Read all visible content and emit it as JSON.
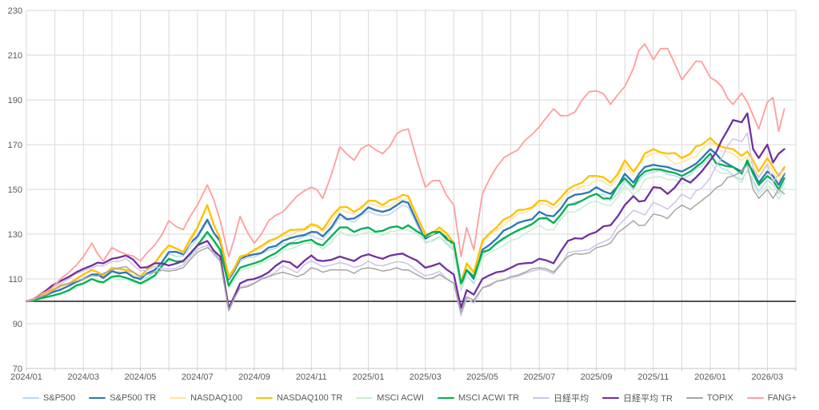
{
  "chart_data": {
    "type": "line",
    "title": "",
    "xlabel": "",
    "ylabel": "",
    "ylim": [
      70,
      230
    ],
    "y_ticks": [
      70,
      90,
      110,
      130,
      150,
      170,
      190,
      210,
      230
    ],
    "baseline_value": 100,
    "grid": true,
    "legend_position": "bottom",
    "x_unit": "months since 2024/01",
    "x_axis_range_months": [
      0,
      27
    ],
    "x_tick_labels": [
      "2024/01",
      "2024/03",
      "2024/05",
      "2024/07",
      "2024/09",
      "2024/11",
      "2025/01",
      "2025/03",
      "2025/05",
      "2025/07",
      "2025/09",
      "2025/11",
      "2026/01",
      "2026/03"
    ],
    "x_tick_positions": [
      0,
      2,
      4,
      6,
      8,
      10,
      12,
      14,
      16,
      18,
      20,
      22,
      24,
      26
    ],
    "colors": {
      "grid": "#D9D9D9",
      "axis_line": "#C6C6C6",
      "axis_text": "#595959",
      "baseline": "#1A1A1A",
      "background": "#FFFFFF"
    },
    "x": [
      0,
      0.25,
      0.9,
      1.5,
      2,
      2.3,
      2.7,
      3,
      3.5,
      4,
      4.5,
      5,
      5.5,
      6,
      6.35,
      6.8,
      7.1,
      7.5,
      8,
      8.5,
      9,
      9.5,
      10,
      10.4,
      11,
      11.5,
      12,
      12.5,
      13,
      13.4,
      14,
      14.5,
      15,
      15.25,
      15.45,
      15.7,
      16,
      16.5,
      17,
      17.5,
      18,
      18.5,
      19,
      19.5,
      20,
      20.5,
      21,
      21.3,
      21.7,
      22,
      22.5,
      23,
      23.3,
      23.7,
      24,
      24.4,
      24.8,
      25.1,
      25.3,
      25.5,
      25.7,
      26,
      26.2,
      26.4,
      26.6
    ],
    "series": [
      {
        "name": "S&P500",
        "color": "#BDD7EE",
        "width": 1.5,
        "values": [
          100,
          100.5,
          103.8,
          106.7,
          109.7,
          111.6,
          110.1,
          113,
          112.5,
          109.4,
          113.3,
          121.2,
          120.2,
          128.1,
          135.5,
          126,
          108.9,
          117.9,
          119.8,
          122.7,
          125.6,
          127.6,
          129.5,
          127.5,
          137.4,
          135.3,
          140.2,
          138.2,
          141.1,
          142,
          126,
          128.9,
          122.8,
          104.8,
          111.7,
          107.7,
          120.6,
          125.5,
          130.4,
          133.4,
          137.3,
          135.2,
          143.2,
          145.1,
          148,
          145,
          153.9,
          149.9,
          156.8,
          157.7,
          156.7,
          154.6,
          156.5,
          160.5,
          164.4,
          159.4,
          156.3,
          154.3,
          158.2,
          154.2,
          149.1,
          154.1,
          152,
          148,
          153
        ]
      },
      {
        "name": "S&P500 TR",
        "color": "#2E75B6",
        "width": 2.3,
        "values": [
          100,
          100.5,
          104,
          107,
          110,
          112,
          110.5,
          113.5,
          113,
          110,
          114,
          122,
          121,
          129,
          136.5,
          127,
          110,
          119,
          121,
          124,
          127,
          129,
          131,
          129,
          139,
          137,
          142,
          140,
          143,
          144,
          128,
          131,
          125,
          107,
          114,
          110,
          123,
          128,
          133,
          136,
          140,
          138,
          146,
          148,
          151,
          148,
          157,
          153,
          160,
          161,
          160,
          158,
          160,
          164,
          168,
          163,
          160,
          158,
          162,
          158,
          153,
          158,
          156,
          152,
          157
        ]
      },
      {
        "name": "NASDAQ100",
        "color": "#FFE699",
        "width": 1.5,
        "values": [
          100,
          100.5,
          104.9,
          107.9,
          111.8,
          113.8,
          111.3,
          114.7,
          113.7,
          110.7,
          116.6,
          124.6,
          121.5,
          132.5,
          142.5,
          127.4,
          110.4,
          119.4,
          122.3,
          126.3,
          129.2,
          131.2,
          133.7,
          131.1,
          141.1,
          139,
          144,
          142,
          144.9,
          145.9,
          128.8,
          131.8,
          124.8,
          106.8,
          115.7,
          111.7,
          125.7,
          131.6,
          136.6,
          139.5,
          143.5,
          141.5,
          148.4,
          151.4,
          154.3,
          151.3,
          161.2,
          156.2,
          164.2,
          166.1,
          164.1,
          162.1,
          164,
          168,
          170.9,
          166.9,
          165.9,
          162.9,
          164.8,
          160.8,
          155.8,
          161.7,
          157.7,
          153.7,
          157.6
        ]
      },
      {
        "name": "NASDAQ100 TR",
        "color": "#FFC000",
        "width": 2.3,
        "values": [
          100,
          100.5,
          105,
          108,
          112,
          114,
          111.5,
          115,
          114,
          111,
          117,
          125,
          122,
          133,
          143,
          128,
          111,
          120,
          123,
          127,
          130,
          132,
          134.5,
          132,
          142,
          140,
          145,
          143,
          146,
          147,
          130,
          133,
          126,
          108,
          117,
          113,
          127,
          133,
          138,
          141,
          145,
          143,
          150,
          153,
          156,
          153,
          163,
          158,
          166,
          168,
          166,
          164,
          166,
          170,
          173,
          169,
          168,
          165,
          167,
          163,
          158,
          164,
          160,
          156,
          160
        ]
      },
      {
        "name": "MSCI ACWI",
        "color": "#C6EFCE",
        "width": 1.5,
        "values": [
          100,
          100.3,
          102.3,
          104.7,
          107.7,
          109.6,
          108.1,
          110.5,
          109.9,
          107.4,
          110.8,
          118.2,
          117.1,
          124,
          129.9,
          121.9,
          105.9,
          113.8,
          115.7,
          118.6,
          122.5,
          124.5,
          125.9,
          123.3,
          131.2,
          129.2,
          131,
          129.5,
          131.4,
          131.8,
          126.8,
          128.7,
          123.6,
          105.6,
          111.5,
          108.5,
          119.4,
          123.3,
          127.2,
          130.2,
          134.1,
          132,
          139.9,
          141.9,
          144.8,
          142.7,
          151.6,
          147.6,
          154.5,
          155.5,
          154.4,
          152.3,
          154.3,
          158.2,
          162.1,
          157.1,
          156,
          153,
          158.9,
          152.9,
          147.8,
          151.8,
          149.7,
          145.7,
          150.6
        ]
      },
      {
        "name": "MSCI ACWI TR",
        "color": "#00B050",
        "width": 2.3,
        "values": [
          100,
          100.3,
          102.5,
          105,
          108,
          110,
          108.5,
          111,
          110.5,
          108,
          111.5,
          119,
          118,
          125,
          131,
          123,
          107,
          115,
          117,
          120,
          124,
          126,
          127.5,
          125,
          133,
          131,
          133,
          131.5,
          133.5,
          134,
          129,
          131,
          126,
          108,
          114,
          111,
          122,
          126,
          130,
          133,
          137,
          135,
          143,
          145,
          148,
          146,
          155,
          151,
          158,
          159,
          158,
          156,
          158,
          162,
          166,
          161,
          160,
          157,
          163,
          157,
          152,
          156,
          154,
          150,
          155
        ]
      },
      {
        "name": "日経平均",
        "color": "#CDC3E8",
        "width": 1.5,
        "values": [
          100,
          100.8,
          106.5,
          110.3,
          113.6,
          115,
          115.9,
          117.8,
          119.2,
          113.6,
          115.5,
          114.4,
          116.3,
          123.2,
          125.1,
          118.1,
          95.5,
          106.3,
          108.2,
          111.1,
          115.9,
          112.8,
          118.1,
          115.5,
          117.3,
          115.2,
          118,
          115.9,
          117.7,
          116.6,
          111.4,
          113.3,
          108.2,
          93.5,
          101.2,
          99.2,
          106,
          108.8,
          110.6,
          112.5,
          114.3,
          112.2,
          121.8,
          122.6,
          125.3,
          128.1,
          136.8,
          140.6,
          138.5,
          144.3,
          141.2,
          147.9,
          145.8,
          150.5,
          155.2,
          164,
          172.6,
          171.4,
          175.2,
          159.4,
          155.3,
          161.1,
          153.2,
          157,
          158.9
        ]
      },
      {
        "name": "日経平均 TR",
        "color": "#7030A0",
        "width": 2.3,
        "values": [
          100,
          101,
          107,
          111,
          114.5,
          116,
          117,
          119,
          120.5,
          115,
          117,
          116,
          118,
          125,
          127,
          120,
          97,
          108,
          110,
          113,
          118,
          115,
          120.5,
          118,
          120,
          118,
          121,
          119,
          121,
          120,
          115,
          117,
          112,
          97,
          105,
          103,
          110,
          113,
          115,
          117,
          119,
          117,
          127,
          128,
          131,
          134,
          143,
          147,
          145,
          151,
          148,
          155,
          153,
          158,
          163,
          172,
          181,
          180,
          184,
          168,
          164,
          170,
          162,
          166,
          168
        ]
      },
      {
        "name": "TOPIX",
        "color": "#A6A6A6",
        "width": 1.5,
        "values": [
          100,
          100.8,
          104.5,
          108,
          110,
          111.5,
          112.5,
          114,
          115.5,
          111,
          113,
          113.5,
          115,
          122,
          124,
          118,
          96,
          106,
          108,
          111,
          113,
          111,
          115,
          113,
          114,
          112.5,
          115,
          113.5,
          115,
          114,
          110,
          112,
          108,
          95,
          102,
          100.5,
          106,
          109,
          111,
          113,
          115,
          113,
          120,
          121,
          124,
          126,
          133,
          136,
          134,
          139,
          137,
          143,
          141,
          145,
          148,
          152,
          156,
          158,
          161,
          150,
          146,
          150,
          146,
          150,
          148
        ]
      },
      {
        "name": "FANG+",
        "color": "#FF9D9D",
        "width": 1.8,
        "values": [
          100,
          101,
          106,
          113,
          120,
          126,
          118,
          124,
          121,
          118,
          125,
          136,
          132,
          143,
          152,
          136,
          120,
          138,
          126,
          136,
          140,
          147,
          151,
          146,
          169,
          163,
          170,
          166,
          175,
          177,
          151,
          154,
          143,
          120,
          133,
          123,
          148,
          160,
          166,
          172,
          178,
          186,
          183,
          190,
          194,
          188,
          196,
          204,
          215,
          208,
          213,
          199,
          204,
          207,
          200,
          196,
          188,
          193,
          189,
          183,
          177,
          189,
          191,
          176,
          186
        ]
      }
    ]
  }
}
